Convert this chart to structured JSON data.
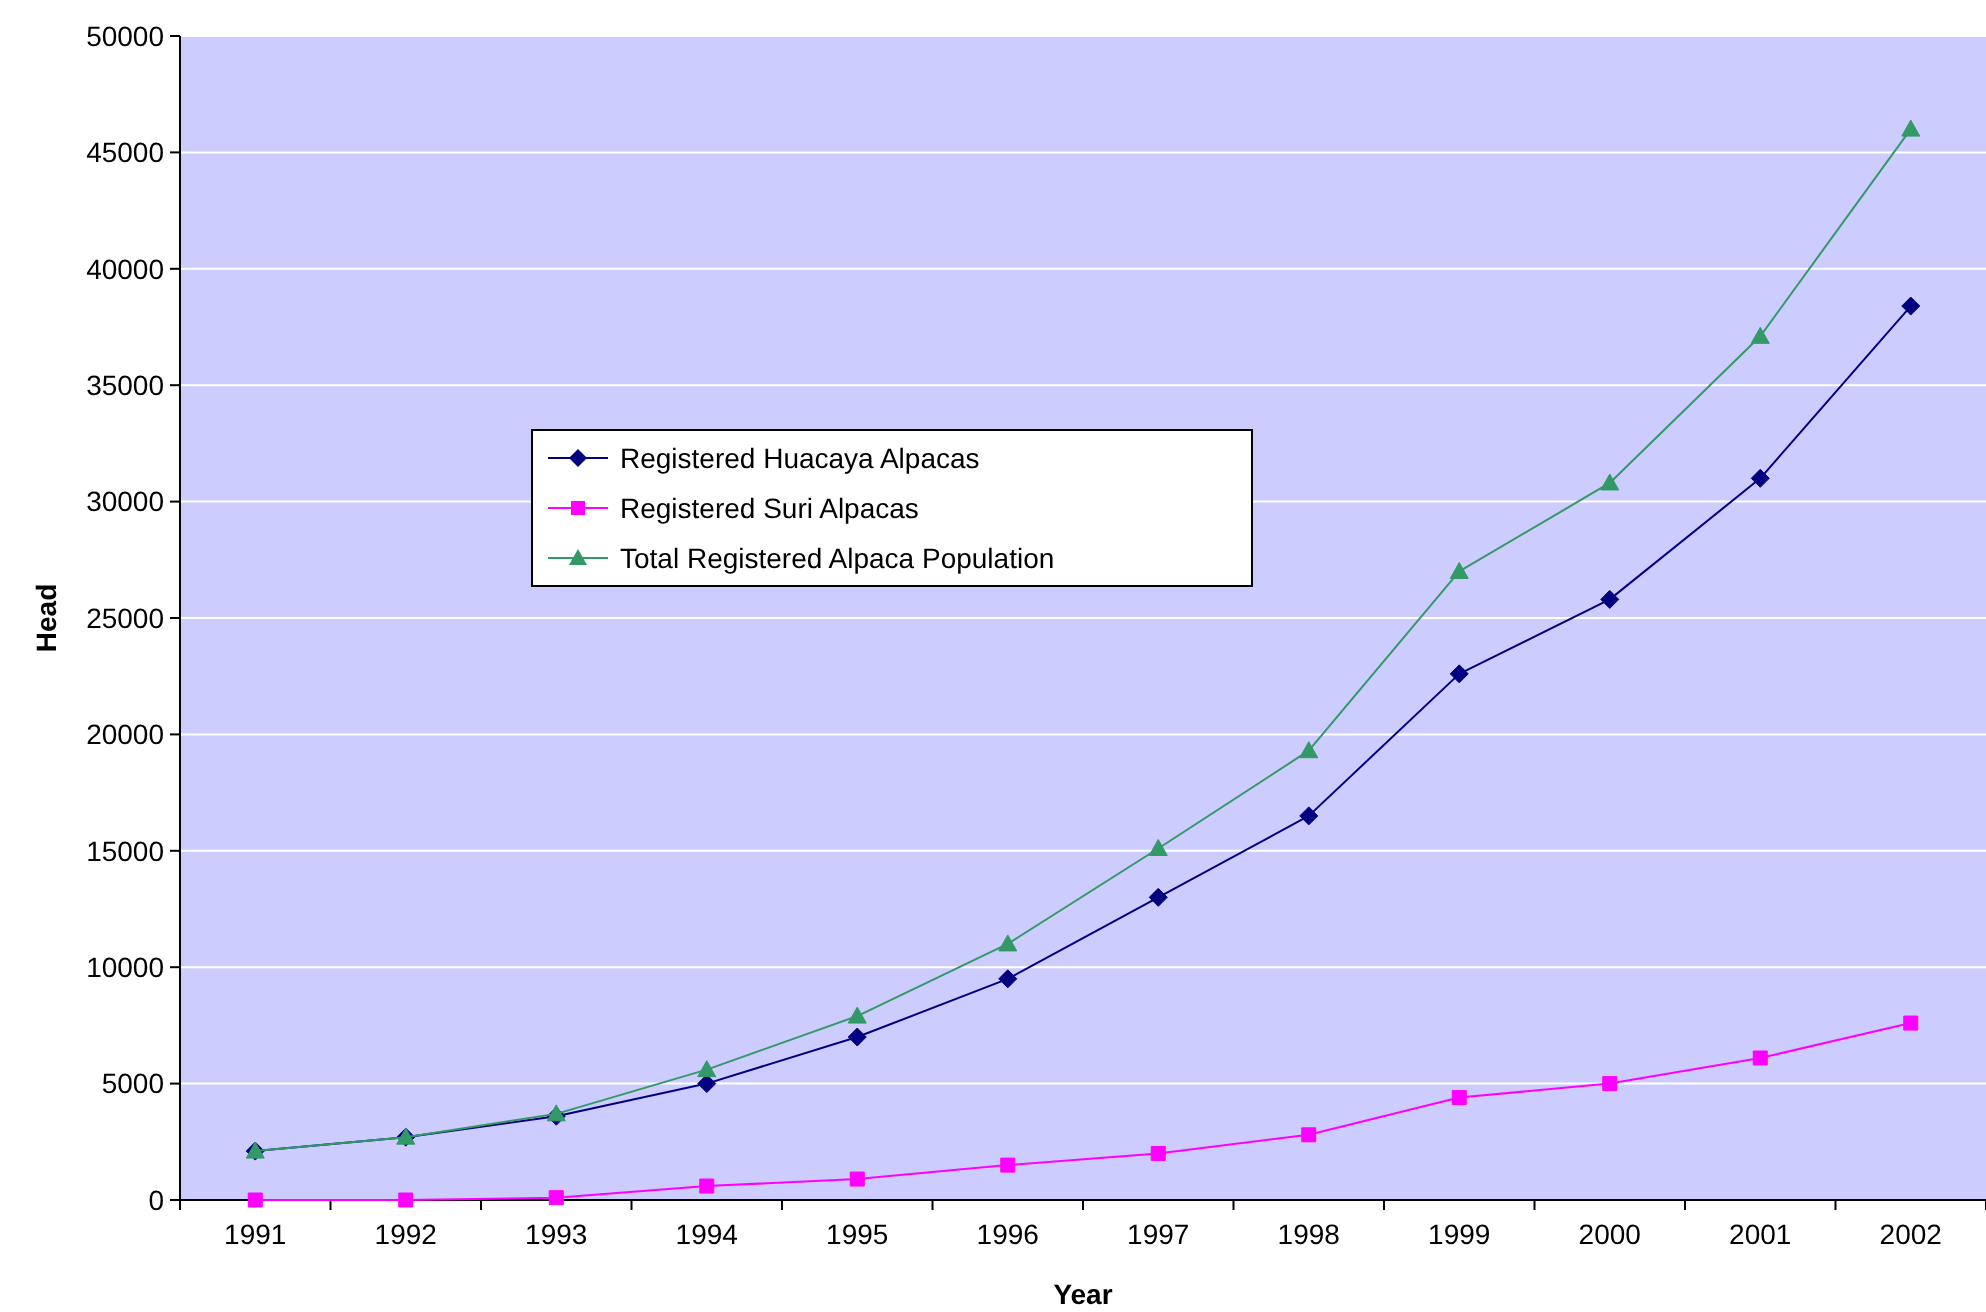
{
  "chart_data": {
    "type": "line",
    "xlabel": "Year",
    "ylabel": "Head",
    "categories": [
      "1991",
      "1992",
      "1993",
      "1994",
      "1995",
      "1996",
      "1997",
      "1998",
      "1999",
      "2000",
      "2001",
      "2002"
    ],
    "series": [
      {
        "name": "Registered Huacaya Alpacas",
        "color": "#000080",
        "marker": "diamond",
        "values": [
          2100,
          2700,
          3600,
          5000,
          7000,
          9500,
          13000,
          16500,
          22600,
          25800,
          31000,
          38400
        ]
      },
      {
        "name": "Registered Suri Alpacas",
        "color": "#ff00ff",
        "marker": "square",
        "values": [
          0,
          0,
          100,
          600,
          900,
          1500,
          2000,
          2800,
          4400,
          5000,
          6100,
          7600
        ]
      },
      {
        "name": "Total Registered Alpaca Population",
        "color": "#339966",
        "marker": "triangle",
        "values": [
          2100,
          2700,
          3700,
          5600,
          7900,
          11000,
          15100,
          19300,
          27000,
          30800,
          37100,
          46000
        ]
      }
    ],
    "ylim": [
      0,
      50000
    ],
    "yticks": [
      0,
      5000,
      10000,
      15000,
      20000,
      25000,
      30000,
      35000,
      40000,
      45000,
      50000
    ],
    "grid": "y",
    "legend": "center",
    "line_style": "solid"
  }
}
